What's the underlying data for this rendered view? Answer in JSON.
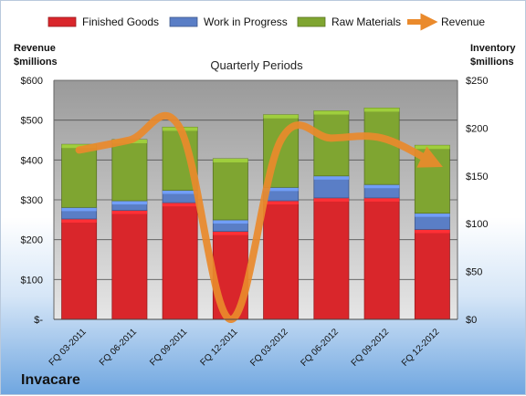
{
  "chart_data": {
    "type": "bar",
    "title": "Quarterly Periods",
    "left_axis_label": [
      "Revenue",
      "$millions"
    ],
    "right_axis_label": [
      "Inventory",
      "$millions"
    ],
    "categories": [
      "FQ 03-2011",
      "FQ 06-2011",
      "FQ 09-2011",
      "FQ 12-2011",
      "FQ 03-2012",
      "FQ 06-2012",
      "FQ 09-2012",
      "FQ 12-2012"
    ],
    "left_ticks": [
      "$-",
      "$100",
      "$200",
      "$300",
      "$400",
      "$500",
      "$600"
    ],
    "right_ticks": [
      "$0",
      "$50",
      "$100",
      "$150",
      "$200",
      "$250"
    ],
    "left_ylim": [
      0,
      600
    ],
    "right_ylim": [
      0,
      250
    ],
    "series": [
      {
        "name": "Finished Goods",
        "axis": "right",
        "color": "#d9262b",
        "values": [
          105,
          114,
          122,
          92,
          124,
          127,
          127,
          94
        ]
      },
      {
        "name": "Work in Progress",
        "axis": "right",
        "color": "#5a7ec6",
        "values": [
          12,
          10,
          13,
          12,
          14,
          23,
          14,
          17
        ]
      },
      {
        "name": "Raw Materials",
        "axis": "right",
        "color": "#7fa531",
        "values": [
          66,
          64,
          66,
          64,
          76,
          68,
          80,
          71
        ]
      },
      {
        "name": "Revenue",
        "axis": "left",
        "type": "line",
        "color": "#ea8a2c",
        "values": [
          425,
          450,
          480,
          0,
          450,
          455,
          455,
          395
        ]
      }
    ],
    "legend_position": "top",
    "grid": true
  },
  "company": "Invacare"
}
